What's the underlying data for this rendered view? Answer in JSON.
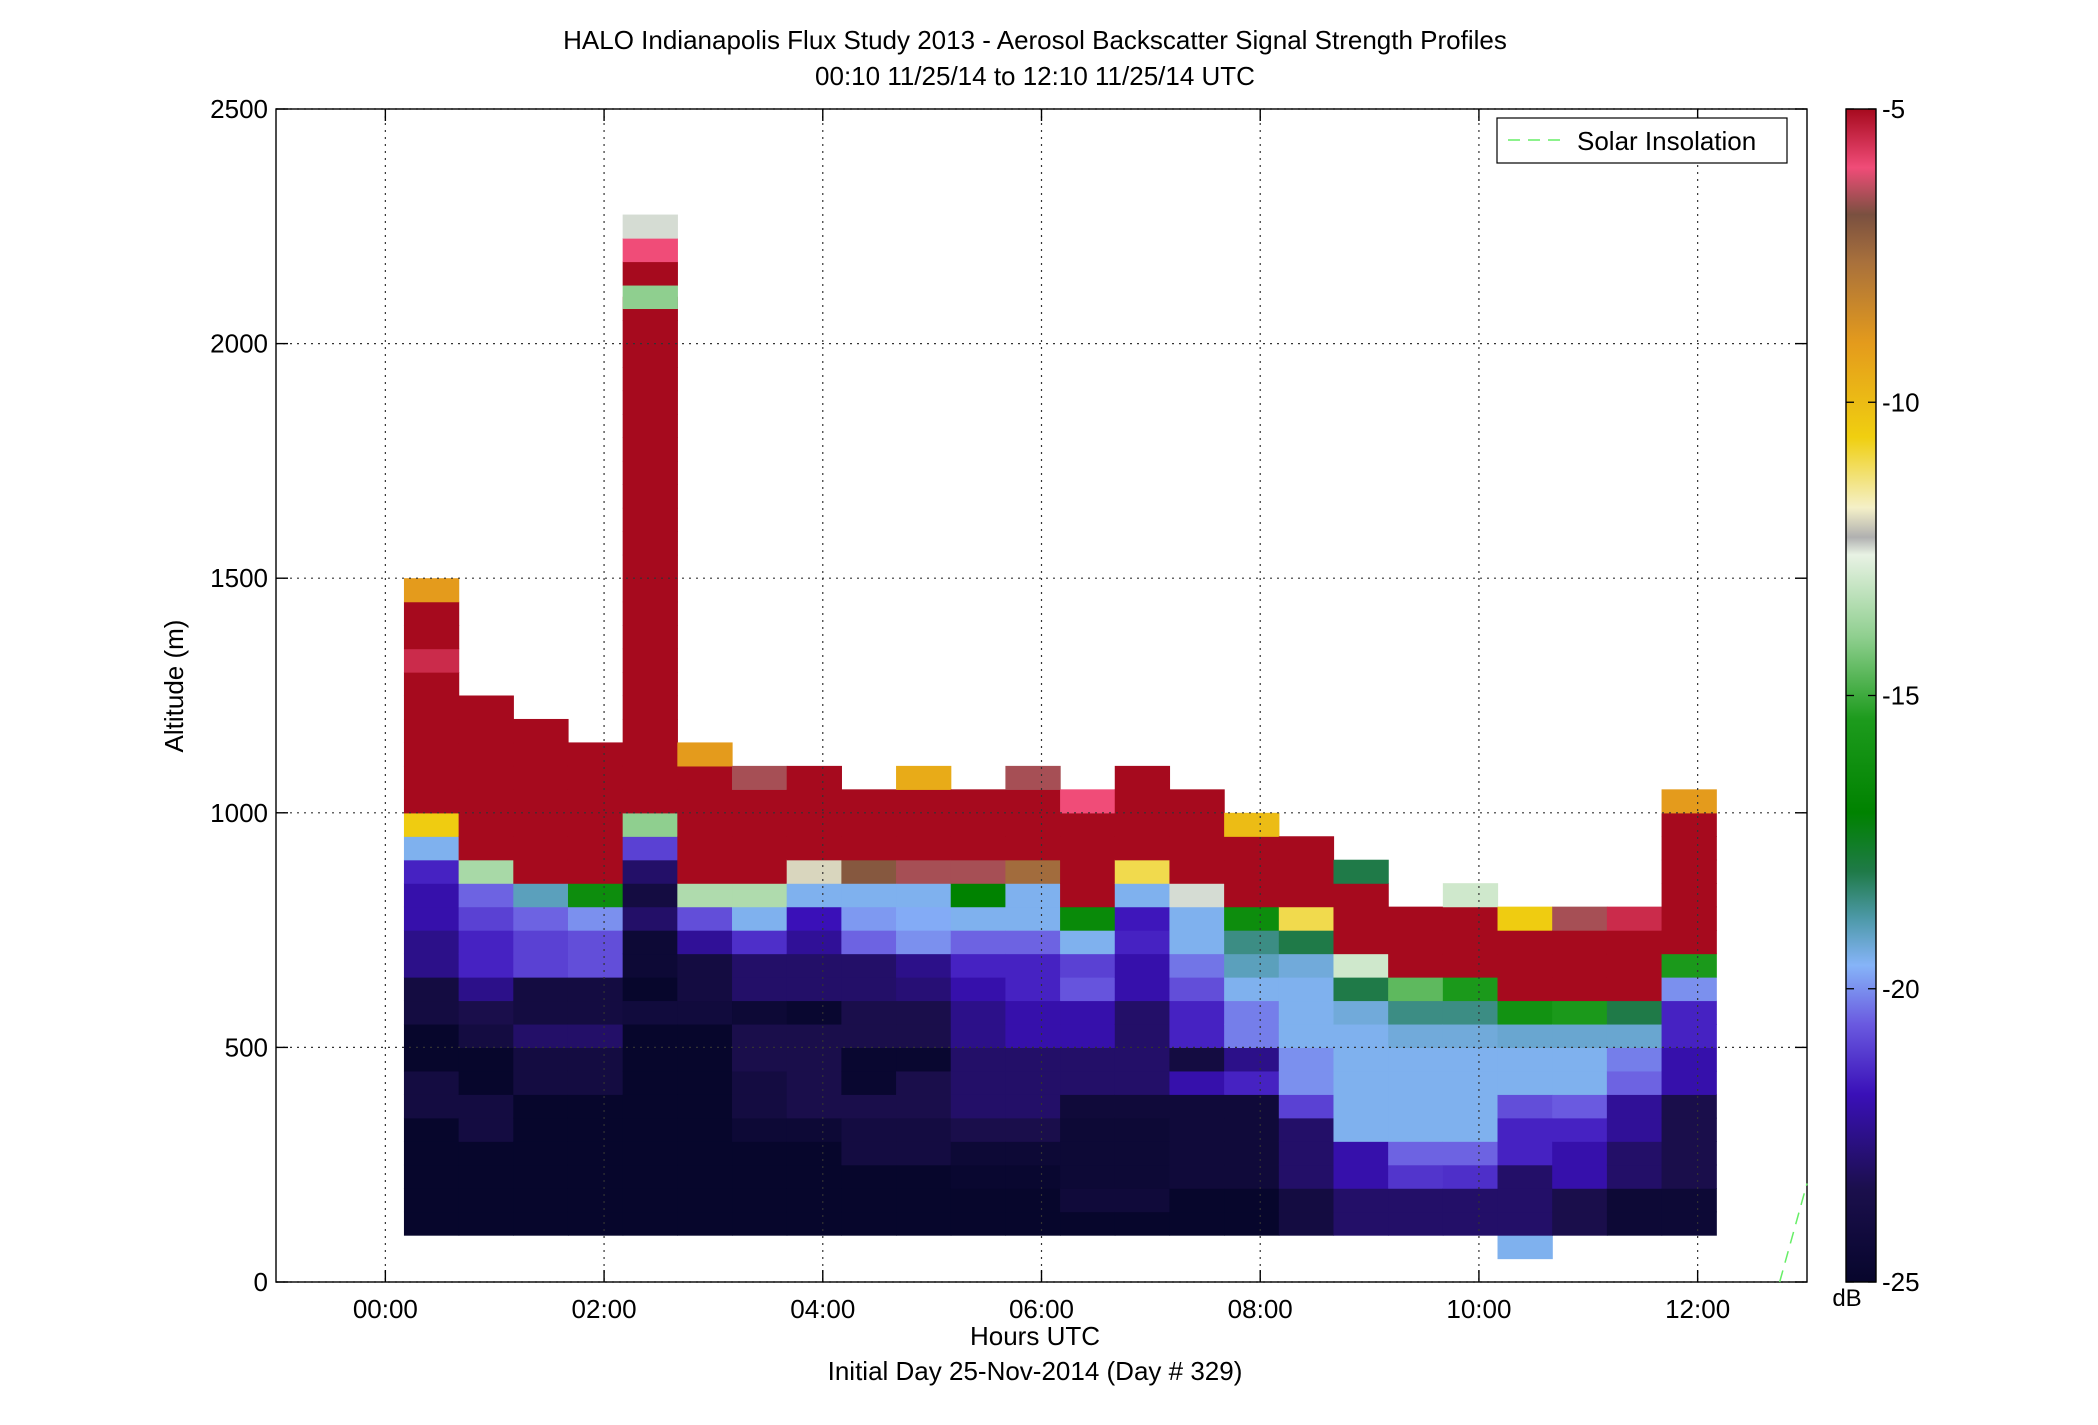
{
  "chart_data": {
    "type": "heatmap",
    "title": "HALO Indianapolis Flux Study 2013 - Aerosol Backscatter Signal Strength Profiles",
    "subtitle": "00:10 11/25/14 to 12:10 11/25/14  UTC",
    "xlabel": "Hours UTC",
    "xlabel2": "Initial Day 25-Nov-2014 (Day # 329)",
    "ylabel": "Altitude (m)",
    "xlim": [
      -1,
      13
    ],
    "ylim": [
      0,
      2500
    ],
    "x_ticks": [
      0,
      2,
      4,
      6,
      8,
      10,
      12
    ],
    "x_tick_labels": [
      "00:00",
      "02:00",
      "04:00",
      "06:00",
      "08:00",
      "10:00",
      "12:00"
    ],
    "y_ticks": [
      0,
      500,
      1000,
      1500,
      2000,
      2500
    ],
    "y_tick_labels": [
      "0",
      "500",
      "1000",
      "1500",
      "2000",
      "2500"
    ],
    "grid": true,
    "legend": {
      "entries": [
        "Solar Insolation"
      ],
      "position": "top-right",
      "line_color": "#66ee66"
    },
    "colorbar": {
      "label": "dB",
      "min": -25,
      "max": -5,
      "ticks": [
        -25,
        -20,
        -15,
        -10,
        -5
      ],
      "tick_labels": [
        "-25",
        "-20",
        "-15",
        "-10",
        "-5"
      ],
      "stops": [
        [
          "#07062c",
          0.0
        ],
        [
          "#1b0f4d",
          0.08
        ],
        [
          "#3a10b8",
          0.16
        ],
        [
          "#6a5ae0",
          0.22
        ],
        [
          "#86b4f8",
          0.27
        ],
        [
          "#4d99a8",
          0.31
        ],
        [
          "#1f7a48",
          0.35
        ],
        [
          "#008200",
          0.4
        ],
        [
          "#1d9b1d",
          0.48
        ],
        [
          "#8fcf8f",
          0.55
        ],
        [
          "#e8f2e4",
          0.62
        ],
        [
          "#b0b0b0",
          0.635
        ],
        [
          "#f4f0c8",
          0.66
        ],
        [
          "#f0cf10",
          0.72
        ],
        [
          "#e49b1c",
          0.8
        ],
        [
          "#a8703c",
          0.87
        ],
        [
          "#7a5040",
          0.91
        ],
        [
          "#f04c78",
          0.95
        ],
        [
          "#a60a1e",
          1.0
        ]
      ]
    },
    "cell_height_m": 50,
    "columns": [
      {
        "x": 0.17,
        "bottom": 100,
        "values": [
          -25,
          -25,
          -25,
          -25,
          -25,
          -24,
          -24,
          -25,
          -25,
          -24,
          -24,
          -22.5,
          -22.5,
          -22,
          -22,
          -21.5,
          -19.5,
          -10.5,
          -5,
          -5,
          -5,
          -5,
          -5,
          -5,
          -5.5,
          -5,
          -5,
          -9
        ]
      },
      {
        "x": 0.67,
        "bottom": 100,
        "values": [
          -25,
          -25,
          -25,
          -25,
          -24,
          -24,
          -25,
          -25,
          -24,
          -23.5,
          -22.5,
          -21.5,
          -21.5,
          -21,
          -20.5,
          -13.6,
          -5,
          -5,
          -5,
          -5,
          -5,
          -5,
          -5
        ]
      },
      {
        "x": 1.17,
        "bottom": 100,
        "values": [
          -25,
          -25,
          -25,
          -25,
          -25,
          -25,
          -24,
          -24,
          -23,
          -24,
          -24,
          -21,
          -21,
          -20.5,
          -19,
          -5,
          -5,
          -5,
          -5,
          -5,
          -5,
          -5
        ]
      },
      {
        "x": 1.67,
        "bottom": 100,
        "values": [
          -25,
          -25,
          -25,
          -25,
          -25,
          -25,
          -24,
          -24,
          -23,
          -24,
          -24,
          -20.8,
          -20.8,
          -20,
          -16.3,
          -5,
          -5,
          -5,
          -5,
          -5,
          -5
        ]
      },
      {
        "x": 2.17,
        "bottom": 100,
        "values": [
          -25,
          -25,
          -25,
          -25,
          -25,
          -25,
          -25,
          -25,
          -25,
          -24.2,
          -25,
          -24.5,
          -24.5,
          -23,
          -24,
          -23,
          -21,
          -14,
          -5,
          -5,
          -5,
          -5,
          -5,
          -5,
          -5,
          -5,
          -5,
          -5,
          -5,
          -5,
          -5,
          -5,
          -5,
          -5,
          -5,
          -5,
          -5,
          -5,
          -5,
          -5
        ],
        "extra": [
          {
            "bottom": 2075,
            "values": [
              -14,
              -5,
              -6,
              -12.5
            ]
          }
        ]
      },
      {
        "x": 2.67,
        "bottom": 100,
        "values": [
          -25,
          -25,
          -25,
          -25,
          -25,
          -25,
          -25,
          -25,
          -25,
          -24.2,
          -24,
          -24,
          -22.3,
          -20.8,
          -13.5,
          -5,
          -5,
          -5,
          -5,
          -5,
          -9
        ]
      },
      {
        "x": 3.17,
        "bottom": 100,
        "values": [
          -25,
          -25,
          -25,
          -25,
          -24.5,
          -24,
          -24,
          -23.5,
          -23.5,
          -24.5,
          -23,
          -23,
          -21.3,
          -19.5,
          -13.5,
          -5,
          -5,
          -5,
          -5,
          -6.5
        ]
      },
      {
        "x": 3.67,
        "bottom": 100,
        "values": [
          -25,
          -25,
          -25,
          -25,
          -24.5,
          -23.5,
          -23.5,
          -23.5,
          -23.5,
          -24.8,
          -23,
          -23,
          -22.3,
          -21.8,
          -19.5,
          -12,
          -5,
          -5,
          -5,
          -5
        ]
      },
      {
        "x": 4.17,
        "bottom": 100,
        "values": [
          -25,
          -25,
          -25,
          -24,
          -24,
          -23.5,
          -24.8,
          -24.8,
          -23.5,
          -23.5,
          -23,
          -23,
          -20.5,
          -19.9,
          -19.5,
          -7,
          -5,
          -5,
          -5
        ]
      },
      {
        "x": 4.67,
        "bottom": 100,
        "values": [
          -25,
          -25,
          -25,
          -24,
          -24,
          -23.5,
          -23.5,
          -24.8,
          -23.5,
          -23.5,
          -22.8,
          -22.5,
          -20,
          -19.7,
          -19.5,
          -6.5,
          -5,
          -5,
          -5,
          -9.5
        ]
      },
      {
        "x": 5.17,
        "bottom": 100,
        "values": [
          -25,
          -25,
          -24.8,
          -24.5,
          -23.5,
          -23,
          -23,
          -23,
          -22.5,
          -22.5,
          -22,
          -21.5,
          -20.5,
          -19.5,
          -17,
          -6.5,
          -5,
          -5,
          -5
        ]
      },
      {
        "x": 5.67,
        "bottom": 100,
        "values": [
          -25,
          -25,
          -24.8,
          -24.5,
          -23.5,
          -23,
          -23,
          -23,
          -22,
          -22,
          -21.5,
          -21.5,
          -20.5,
          -19.5,
          -19.5,
          -7.5,
          -5,
          -5,
          -5,
          -6.5
        ]
      },
      {
        "x": 6.17,
        "bottom": 100,
        "values": [
          -25,
          -24.3,
          -24.5,
          -24.5,
          -24.5,
          -24.3,
          -23,
          -23,
          -22,
          -22,
          -20.7,
          -21,
          -19.5,
          -16.5,
          -5,
          -5,
          -5,
          -5,
          -6
        ]
      },
      {
        "x": 6.67,
        "bottom": 100,
        "values": [
          -25,
          -24.3,
          -24.5,
          -24.5,
          -24.5,
          -24.3,
          -23,
          -23,
          -23,
          -23,
          -22,
          -22,
          -21.5,
          -21.7,
          -19.5,
          -11,
          -5,
          -5,
          -5,
          -5
        ]
      },
      {
        "x": 7.17,
        "bottom": 100,
        "values": [
          -25,
          -25,
          -24.3,
          -24.3,
          -24.3,
          -24.3,
          -22,
          -24,
          -21.5,
          -21.5,
          -20.8,
          -20.3,
          -19.5,
          -19.5,
          -12.5,
          -5,
          -5,
          -5,
          -5
        ]
      },
      {
        "x": 7.67,
        "bottom": 100,
        "values": [
          -25,
          -25,
          -24.3,
          -24.3,
          -24.3,
          -24.3,
          -21.5,
          -22.5,
          -20.2,
          -20.2,
          -19.5,
          -19,
          -18.5,
          -16.3,
          -5,
          -5,
          -5,
          -10
        ]
      },
      {
        "x": 8.17,
        "bottom": 100,
        "values": [
          -24,
          -24,
          -23,
          -23,
          -23,
          -21,
          -20,
          -20,
          -19.5,
          -19.5,
          -19.5,
          -19.3,
          -18,
          -11,
          -5,
          -5,
          -5
        ]
      },
      {
        "x": 8.67,
        "bottom": 100,
        "values": [
          -23,
          -23,
          -22,
          -22,
          -19.5,
          -19.5,
          -19.5,
          -19.5,
          -19.5,
          -19.3,
          -18,
          -13,
          -5,
          -5,
          -5,
          -18
        ]
      },
      {
        "x": 9.17,
        "bottom": 100,
        "values": [
          -23,
          -23,
          -21.2,
          -20.5,
          -19.5,
          -19.5,
          -19.5,
          -19.5,
          -19.3,
          -18.5,
          -14.6,
          -5,
          -5,
          -5
        ]
      },
      {
        "x": 9.67,
        "bottom": 100,
        "values": [
          -23,
          -23,
          -21.3,
          -20.5,
          -19.5,
          -19.5,
          -19.5,
          -19.5,
          -19.3,
          -18.5,
          -15.5,
          -5,
          -5,
          -5,
          -13
        ]
      },
      {
        "x": 10.17,
        "bottom": 50,
        "values": [
          -19.5,
          -23,
          -23,
          -23,
          -21.5,
          -21.5,
          -20.8,
          -19.5,
          -19.5,
          -19.2,
          -16,
          -5,
          -5,
          -5,
          -10.5
        ]
      },
      {
        "x": 10.67,
        "bottom": 100,
        "values": [
          -23.5,
          -23.5,
          -22,
          -22,
          -21.5,
          -20.6,
          -19.5,
          -19.5,
          -19.2,
          -15.5,
          -5,
          -5,
          -5,
          -6.5
        ]
      },
      {
        "x": 11.17,
        "bottom": 100,
        "values": [
          -24.5,
          -24.5,
          -23,
          -23,
          -22.3,
          -22.3,
          -20.5,
          -20.2,
          -19.2,
          -18,
          -5,
          -5,
          -5,
          -5.5
        ]
      },
      {
        "x": 11.67,
        "bottom": 100,
        "values": [
          -24.5,
          -24.5,
          -23.5,
          -23.5,
          -23.5,
          -23.5,
          -22,
          -22,
          -21.5,
          -21.5,
          -20,
          -15.5,
          -5,
          -5,
          -5,
          -5,
          -5,
          -5,
          -9
        ]
      }
    ],
    "solar_insolation_segment": {
      "x": [
        12.75,
        13.0
      ],
      "y": [
        0,
        210
      ]
    }
  }
}
